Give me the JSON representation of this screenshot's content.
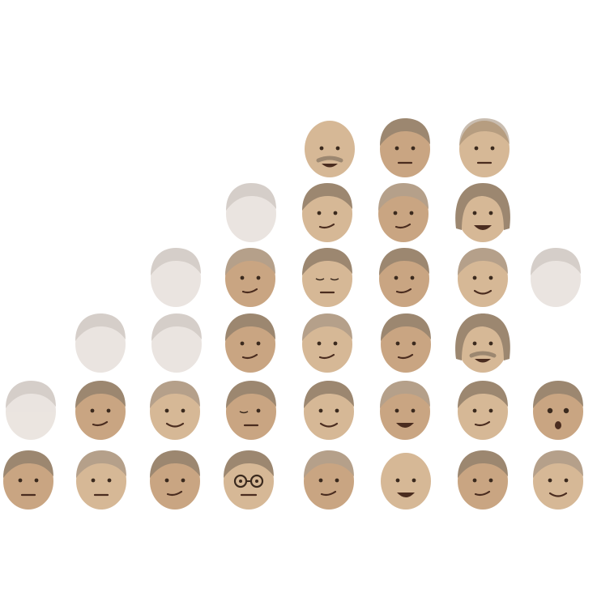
{
  "image": {
    "background": "#ffffff",
    "palette": {
      "skin": "#c9a582",
      "skin_light": "#d6b896",
      "hair": "#9c8770",
      "hair_light": "#b5a08a",
      "ghost": "#e4dcd6",
      "ghost_hair": "#c8beb7",
      "feature": "#3b2a1e",
      "mouth": "#4a2c1f"
    },
    "rows": [
      {
        "faces": [
          {
            "style": "bald",
            "expression": "mustache-grin"
          },
          {
            "style": "hair",
            "expression": "neutral"
          },
          {
            "style": "faded-hair",
            "expression": "neutral"
          }
        ]
      },
      {
        "faces": [
          {
            "style": "ghost",
            "expression": "blank"
          },
          {
            "style": "hair",
            "expression": "smirk"
          },
          {
            "style": "hair",
            "expression": "smirk"
          },
          {
            "style": "long-hair",
            "expression": "open-smile"
          }
        ]
      },
      {
        "faces": [
          {
            "style": "ghost",
            "expression": "blank"
          },
          {
            "style": "hair",
            "expression": "smirk"
          },
          {
            "style": "hair",
            "expression": "eyes-closed"
          },
          {
            "style": "hair",
            "expression": "smirk"
          },
          {
            "style": "hair",
            "expression": "smile"
          },
          {
            "style": "ghost",
            "expression": "blank"
          }
        ]
      },
      {
        "faces": [
          {
            "style": "ghost",
            "expression": "blank"
          },
          {
            "style": "ghost",
            "expression": "blank"
          },
          {
            "style": "hair",
            "expression": "smirk"
          },
          {
            "style": "hair",
            "expression": "smirk"
          },
          {
            "style": "hair",
            "expression": "smirk"
          },
          {
            "style": "long-hair",
            "expression": "mustache-grin"
          }
        ]
      },
      {
        "faces": [
          {
            "style": "ghost",
            "expression": "blank"
          },
          {
            "style": "hair",
            "expression": "smirk"
          },
          {
            "style": "hair",
            "expression": "smile"
          },
          {
            "style": "hair",
            "expression": "wink"
          },
          {
            "style": "hair",
            "expression": "smile"
          },
          {
            "style": "hair",
            "expression": "open-smile"
          },
          {
            "style": "hair",
            "expression": "smirk"
          },
          {
            "style": "hair",
            "expression": "surprised"
          }
        ]
      },
      {
        "faces": [
          {
            "style": "hair",
            "expression": "neutral"
          },
          {
            "style": "hair",
            "expression": "neutral"
          },
          {
            "style": "hair",
            "expression": "smirk"
          },
          {
            "style": "glasses",
            "expression": "glasses"
          },
          {
            "style": "hair",
            "expression": "smirk"
          },
          {
            "style": "bald",
            "expression": "open-smile"
          },
          {
            "style": "hair",
            "expression": "smirk"
          },
          {
            "style": "hair",
            "expression": "smile"
          }
        ]
      }
    ]
  }
}
